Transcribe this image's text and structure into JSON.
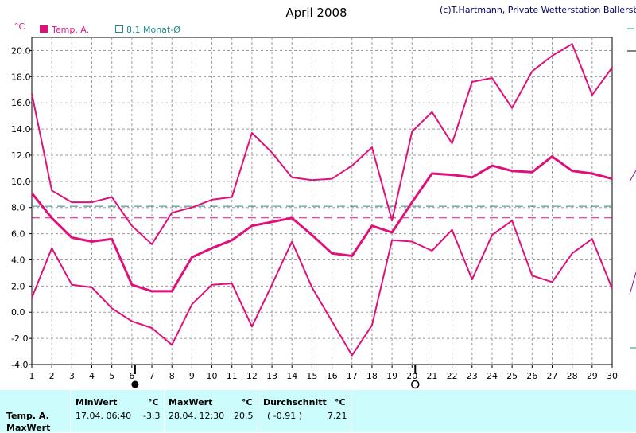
{
  "title": "April 2008",
  "copyright": "(c)T.Hartmann, Private Wetterstation Ballersbach",
  "unit": "°C",
  "legend": [
    {
      "label": "Temp. A.",
      "color": "#e0107a",
      "swatch": "filled"
    },
    {
      "label": "8.1 Monat-Ø",
      "color": "#1e8c8c",
      "swatch": "outline"
    }
  ],
  "chart_data": {
    "type": "line",
    "title": "April 2008",
    "ylabel": "°C",
    "xlabel": "",
    "ylim": [
      -4,
      21
    ],
    "y_ticks": [
      "20.0",
      "18.0",
      "16.0",
      "14.0",
      "12.0",
      "10.0",
      "8.0",
      "6.0",
      "4.0",
      "2.0",
      "0.0",
      "-2.0",
      "-4.0"
    ],
    "x": [
      1,
      2,
      3,
      4,
      5,
      6,
      7,
      8,
      9,
      10,
      11,
      12,
      13,
      14,
      15,
      16,
      17,
      18,
      19,
      20,
      21,
      22,
      23,
      24,
      25,
      26,
      27,
      28,
      29,
      30
    ],
    "grid": true,
    "color": "#e0107a",
    "series": [
      {
        "role": "max",
        "values": [
          16.7,
          9.3,
          8.4,
          8.4,
          8.8,
          6.6,
          5.2,
          7.6,
          8.0,
          8.6,
          8.8,
          13.7,
          12.2,
          10.3,
          10.1,
          10.2,
          11.2,
          12.6,
          7.0,
          13.8,
          15.3,
          12.9,
          17.6,
          17.9,
          15.6,
          18.4,
          19.6,
          20.5,
          16.6,
          18.7
        ]
      },
      {
        "role": "mean",
        "values": [
          9.1,
          7.2,
          5.7,
          5.4,
          5.6,
          2.1,
          1.6,
          1.6,
          4.2,
          4.9,
          5.5,
          6.6,
          6.9,
          7.2,
          5.9,
          4.5,
          4.3,
          6.6,
          6.1,
          8.4,
          10.6,
          10.5,
          10.3,
          11.2,
          10.8,
          10.7,
          11.9,
          10.8,
          10.6,
          10.2
        ]
      },
      {
        "role": "min",
        "values": [
          1.1,
          4.9,
          2.1,
          1.9,
          0.3,
          -0.7,
          -1.2,
          -2.5,
          0.6,
          2.1,
          2.2,
          -1.1,
          2.1,
          5.4,
          1.9,
          -0.7,
          -3.3,
          -1.0,
          5.5,
          5.4,
          4.7,
          6.3,
          2.5,
          5.9,
          7.0,
          2.8,
          2.3,
          4.5,
          5.6,
          1.8
        ]
      }
    ],
    "reference_lines": [
      {
        "label": "8.1 Monat-Ø",
        "value": 8.1,
        "color": "#1e8c8c",
        "style": "dashed"
      },
      {
        "value": 7.21,
        "color": "#e0107a",
        "style": "dashed"
      }
    ],
    "markers": [
      {
        "x": 6,
        "shape": "filled-circle",
        "symbol": "new-moon"
      },
      {
        "x": 20,
        "shape": "open-circle",
        "symbol": "full-moon"
      }
    ]
  },
  "table": {
    "row_label_1": "Temp. A.",
    "row_label_2": "MaxWert",
    "min_header": "MinWert",
    "min_unit": "°C",
    "min_time": "17.04.  06:40",
    "min_value": "-3.3",
    "max_header": "MaxWert",
    "max_unit": "°C",
    "max_time": "28.04.  12:30",
    "max_value": "20.5",
    "avg_header": "Durchschnitt",
    "avg_unit": "°C",
    "avg_note": "( -0.91 )",
    "avg_value": "7.21"
  }
}
